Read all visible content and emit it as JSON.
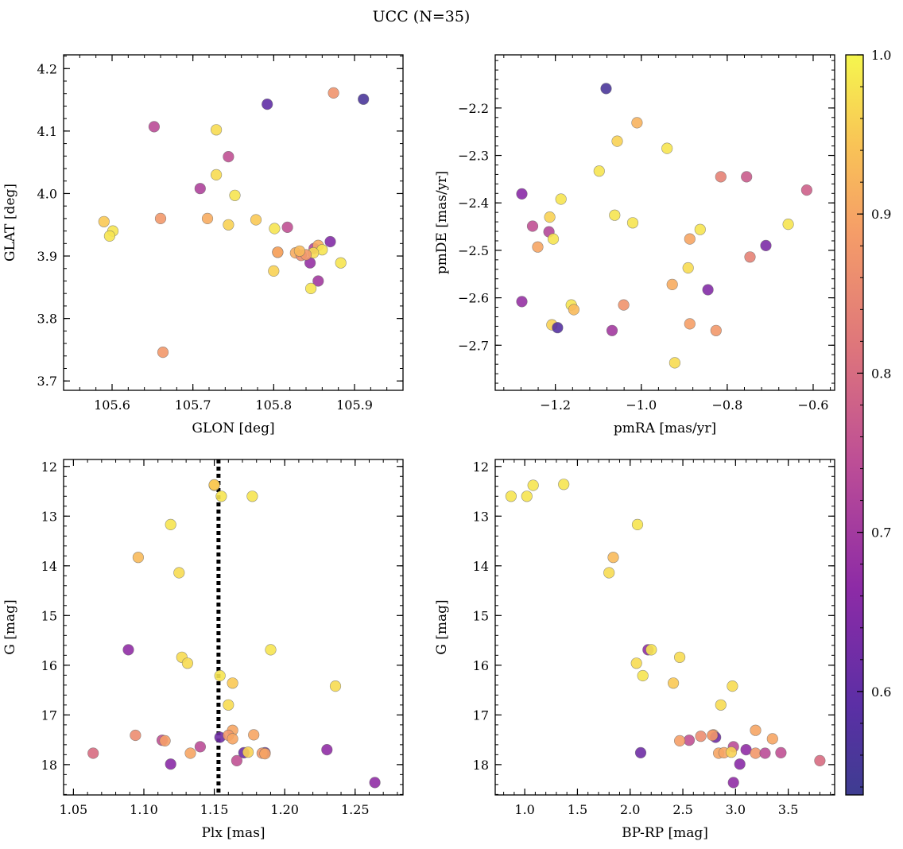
{
  "figure": {
    "title": "UCC (N=35)"
  },
  "colorbar": {
    "min": 0.535,
    "max": 1.0,
    "ticks": [
      0.6,
      0.7,
      0.8,
      0.9,
      1.0
    ],
    "tick_labels": [
      "0.6",
      "0.7",
      "0.8",
      "0.9",
      "1.0"
    ],
    "colormap": "plasma"
  },
  "chart_data": [
    {
      "type": "scatter",
      "xlabel": "GLON [deg]",
      "ylabel": "GLAT [deg]",
      "xlim": [
        105.54,
        105.96
      ],
      "ylim": [
        3.685,
        4.222
      ],
      "yinverted": false,
      "xticks": [
        105.6,
        105.7,
        105.8,
        105.9
      ],
      "xtick_labels": [
        "105.6",
        "105.7",
        "105.8",
        "105.9"
      ],
      "yticks": [
        3.7,
        3.8,
        3.9,
        4.0,
        4.1,
        4.2
      ],
      "ytick_labels": [
        "3.7",
        "3.8",
        "3.9",
        "4.0",
        "4.1",
        "4.2"
      ],
      "points": [
        {
          "x": 105.652,
          "y": 4.107,
          "c": 0.74
        },
        {
          "x": 105.729,
          "y": 4.102,
          "c": 0.97
        },
        {
          "x": 105.792,
          "y": 4.143,
          "c": 0.6
        },
        {
          "x": 105.874,
          "y": 4.161,
          "c": 0.87
        },
        {
          "x": 105.911,
          "y": 4.151,
          "c": 0.56
        },
        {
          "x": 105.744,
          "y": 4.059,
          "c": 0.75
        },
        {
          "x": 105.729,
          "y": 4.03,
          "c": 0.97
        },
        {
          "x": 105.709,
          "y": 4.008,
          "c": 0.72
        },
        {
          "x": 105.752,
          "y": 3.997,
          "c": 0.98
        },
        {
          "x": 105.59,
          "y": 3.955,
          "c": 0.95
        },
        {
          "x": 105.66,
          "y": 3.96,
          "c": 0.88
        },
        {
          "x": 105.718,
          "y": 3.96,
          "c": 0.91
        },
        {
          "x": 105.778,
          "y": 3.958,
          "c": 0.95
        },
        {
          "x": 105.601,
          "y": 3.94,
          "c": 0.98
        },
        {
          "x": 105.597,
          "y": 3.932,
          "c": 0.98
        },
        {
          "x": 105.744,
          "y": 3.95,
          "c": 0.96
        },
        {
          "x": 105.801,
          "y": 3.944,
          "c": 0.98
        },
        {
          "x": 105.817,
          "y": 3.946,
          "c": 0.75
        },
        {
          "x": 105.805,
          "y": 3.906,
          "c": 0.89
        },
        {
          "x": 105.827,
          "y": 3.905,
          "c": 0.91
        },
        {
          "x": 105.834,
          "y": 3.901,
          "c": 0.86
        },
        {
          "x": 105.85,
          "y": 3.912,
          "c": 0.73
        },
        {
          "x": 105.855,
          "y": 3.917,
          "c": 0.91
        },
        {
          "x": 105.86,
          "y": 3.91,
          "c": 0.98
        },
        {
          "x": 105.849,
          "y": 3.905,
          "c": 0.97
        },
        {
          "x": 105.87,
          "y": 3.923,
          "c": 0.65
        },
        {
          "x": 105.845,
          "y": 3.889,
          "c": 0.68
        },
        {
          "x": 105.855,
          "y": 3.86,
          "c": 0.7
        },
        {
          "x": 105.8,
          "y": 3.876,
          "c": 0.96
        },
        {
          "x": 105.846,
          "y": 3.848,
          "c": 0.98
        },
        {
          "x": 105.883,
          "y": 3.889,
          "c": 0.98
        },
        {
          "x": 105.663,
          "y": 3.746,
          "c": 0.88
        },
        {
          "x": 105.805,
          "y": 3.906,
          "c": 0.9
        },
        {
          "x": 105.84,
          "y": 3.902,
          "c": 0.88
        },
        {
          "x": 105.832,
          "y": 3.908,
          "c": 0.93
        }
      ]
    },
    {
      "type": "scatter",
      "xlabel": "pmRA [mas/yr]",
      "ylabel": "pmDE [mas/yr]",
      "xlim": [
        -1.34,
        -0.55
      ],
      "ylim": [
        -2.795,
        -2.088
      ],
      "yinverted": false,
      "xticks": [
        -1.2,
        -1.0,
        -0.8,
        -0.6
      ],
      "xtick_labels": [
        "−1.2",
        "−1.0",
        "−0.8",
        "−0.6"
      ],
      "yticks": [
        -2.7,
        -2.6,
        -2.5,
        -2.4,
        -2.3,
        -2.2
      ],
      "ytick_labels": [
        "−2.7",
        "−2.6",
        "−2.5",
        "−2.4",
        "−2.3",
        "−2.2"
      ],
      "points": [
        {
          "x": -1.082,
          "y": -2.159,
          "c": 0.56
        },
        {
          "x": -1.01,
          "y": -2.231,
          "c": 0.92
        },
        {
          "x": -1.056,
          "y": -2.27,
          "c": 0.96
        },
        {
          "x": -0.94,
          "y": -2.285,
          "c": 0.98
        },
        {
          "x": -1.098,
          "y": -2.333,
          "c": 0.98
        },
        {
          "x": -0.815,
          "y": -2.345,
          "c": 0.84
        },
        {
          "x": -0.755,
          "y": -2.345,
          "c": 0.77
        },
        {
          "x": -0.615,
          "y": -2.373,
          "c": 0.78
        },
        {
          "x": -1.278,
          "y": -2.381,
          "c": 0.66
        },
        {
          "x": -1.187,
          "y": -2.392,
          "c": 0.98
        },
        {
          "x": -1.213,
          "y": -2.43,
          "c": 0.96
        },
        {
          "x": -1.062,
          "y": -2.426,
          "c": 0.98
        },
        {
          "x": -1.02,
          "y": -2.442,
          "c": 0.98
        },
        {
          "x": -0.658,
          "y": -2.445,
          "c": 0.98
        },
        {
          "x": -1.253,
          "y": -2.449,
          "c": 0.75
        },
        {
          "x": -0.863,
          "y": -2.456,
          "c": 0.98
        },
        {
          "x": -1.215,
          "y": -2.461,
          "c": 0.73
        },
        {
          "x": -1.205,
          "y": -2.476,
          "c": 0.98
        },
        {
          "x": -0.887,
          "y": -2.476,
          "c": 0.9
        },
        {
          "x": -0.71,
          "y": -2.49,
          "c": 0.64
        },
        {
          "x": -1.241,
          "y": -2.493,
          "c": 0.9
        },
        {
          "x": -0.747,
          "y": -2.514,
          "c": 0.84
        },
        {
          "x": -0.891,
          "y": -2.537,
          "c": 0.97
        },
        {
          "x": -0.928,
          "y": -2.572,
          "c": 0.91
        },
        {
          "x": -0.845,
          "y": -2.583,
          "c": 0.65
        },
        {
          "x": -1.278,
          "y": -2.608,
          "c": 0.68
        },
        {
          "x": -1.163,
          "y": -2.615,
          "c": 0.98
        },
        {
          "x": -1.157,
          "y": -2.625,
          "c": 0.93
        },
        {
          "x": -1.041,
          "y": -2.615,
          "c": 0.87
        },
        {
          "x": -1.208,
          "y": -2.657,
          "c": 0.96
        },
        {
          "x": -1.195,
          "y": -2.663,
          "c": 0.58
        },
        {
          "x": -0.887,
          "y": -2.655,
          "c": 0.89
        },
        {
          "x": -1.068,
          "y": -2.669,
          "c": 0.7
        },
        {
          "x": -0.826,
          "y": -2.669,
          "c": 0.88
        },
        {
          "x": -0.922,
          "y": -2.737,
          "c": 0.97
        }
      ]
    },
    {
      "type": "scatter",
      "xlabel": "Plx [mas]",
      "ylabel": "G [mag]",
      "xlim": [
        1.043,
        1.284
      ],
      "ylim": [
        11.86,
        18.61
      ],
      "yinverted": true,
      "reference_line_x": 1.153,
      "xticks": [
        1.05,
        1.1,
        1.15,
        1.2,
        1.25
      ],
      "xtick_labels": [
        "1.05",
        "1.10",
        "1.15",
        "1.20",
        "1.25"
      ],
      "yticks": [
        12,
        13,
        14,
        15,
        16,
        17,
        18
      ],
      "ytick_labels": [
        "12",
        "13",
        "14",
        "15",
        "16",
        "17",
        "18"
      ],
      "points": [
        {
          "x": 1.15,
          "y": 12.38,
          "c": 0.96
        },
        {
          "x": 1.155,
          "y": 12.6,
          "c": 0.98
        },
        {
          "x": 1.177,
          "y": 12.6,
          "c": 0.98
        },
        {
          "x": 1.119,
          "y": 13.17,
          "c": 0.98
        },
        {
          "x": 1.096,
          "y": 13.83,
          "c": 0.93
        },
        {
          "x": 1.125,
          "y": 14.14,
          "c": 0.97
        },
        {
          "x": 1.089,
          "y": 15.69,
          "c": 0.67
        },
        {
          "x": 1.127,
          "y": 15.84,
          "c": 0.97
        },
        {
          "x": 1.131,
          "y": 15.96,
          "c": 0.97
        },
        {
          "x": 1.19,
          "y": 15.69,
          "c": 0.98
        },
        {
          "x": 1.154,
          "y": 16.21,
          "c": 0.98
        },
        {
          "x": 1.163,
          "y": 16.36,
          "c": 0.95
        },
        {
          "x": 1.236,
          "y": 16.42,
          "c": 0.97
        },
        {
          "x": 1.16,
          "y": 16.8,
          "c": 0.97
        },
        {
          "x": 1.094,
          "y": 17.41,
          "c": 0.86
        },
        {
          "x": 1.163,
          "y": 17.31,
          "c": 0.9
        },
        {
          "x": 1.178,
          "y": 17.4,
          "c": 0.9
        },
        {
          "x": 1.154,
          "y": 17.45,
          "c": 0.62
        },
        {
          "x": 1.16,
          "y": 17.41,
          "c": 0.88
        },
        {
          "x": 1.163,
          "y": 17.48,
          "c": 0.9
        },
        {
          "x": 1.113,
          "y": 17.51,
          "c": 0.75
        },
        {
          "x": 1.115,
          "y": 17.52,
          "c": 0.89
        },
        {
          "x": 1.14,
          "y": 17.64,
          "c": 0.74
        },
        {
          "x": 1.133,
          "y": 17.77,
          "c": 0.9
        },
        {
          "x": 1.064,
          "y": 17.77,
          "c": 0.8
        },
        {
          "x": 1.171,
          "y": 17.76,
          "c": 0.62
        },
        {
          "x": 1.174,
          "y": 17.75,
          "c": 0.96
        },
        {
          "x": 1.186,
          "y": 17.76,
          "c": 0.62
        },
        {
          "x": 1.184,
          "y": 17.77,
          "c": 0.88
        },
        {
          "x": 1.186,
          "y": 17.78,
          "c": 0.9
        },
        {
          "x": 1.23,
          "y": 17.7,
          "c": 0.67
        },
        {
          "x": 1.119,
          "y": 17.99,
          "c": 0.66
        },
        {
          "x": 1.166,
          "y": 17.92,
          "c": 0.75
        },
        {
          "x": 1.264,
          "y": 18.36,
          "c": 0.67
        },
        {
          "x": 1.15,
          "y": 12.37,
          "c": 0.95
        }
      ]
    },
    {
      "type": "scatter",
      "xlabel": "BP-RP [mag]",
      "ylabel": "G [mag]",
      "xlim": [
        0.72,
        3.94
      ],
      "ylim": [
        11.86,
        18.61
      ],
      "yinverted": true,
      "xticks": [
        1.0,
        1.5,
        2.0,
        2.5,
        3.0,
        3.5
      ],
      "xtick_labels": [
        "1.0",
        "1.5",
        "2.0",
        "2.5",
        "3.0",
        "3.5"
      ],
      "yticks": [
        12,
        13,
        14,
        15,
        16,
        17,
        18
      ],
      "ytick_labels": [
        "12",
        "13",
        "14",
        "15",
        "16",
        "17",
        "18"
      ],
      "points": [
        {
          "x": 0.87,
          "y": 12.6,
          "c": 0.98
        },
        {
          "x": 1.02,
          "y": 12.6,
          "c": 0.98
        },
        {
          "x": 1.08,
          "y": 12.38,
          "c": 0.98
        },
        {
          "x": 1.37,
          "y": 12.36,
          "c": 0.98
        },
        {
          "x": 2.07,
          "y": 13.17,
          "c": 0.98
        },
        {
          "x": 1.84,
          "y": 13.83,
          "c": 0.93
        },
        {
          "x": 1.8,
          "y": 14.14,
          "c": 0.97
        },
        {
          "x": 2.17,
          "y": 15.69,
          "c": 0.67
        },
        {
          "x": 2.2,
          "y": 15.69,
          "c": 0.98
        },
        {
          "x": 2.47,
          "y": 15.84,
          "c": 0.97
        },
        {
          "x": 2.06,
          "y": 15.96,
          "c": 0.97
        },
        {
          "x": 2.12,
          "y": 16.21,
          "c": 0.98
        },
        {
          "x": 2.41,
          "y": 16.36,
          "c": 0.95
        },
        {
          "x": 2.97,
          "y": 16.42,
          "c": 0.97
        },
        {
          "x": 2.86,
          "y": 16.8,
          "c": 0.97
        },
        {
          "x": 3.19,
          "y": 17.31,
          "c": 0.9
        },
        {
          "x": 2.67,
          "y": 17.43,
          "c": 0.86
        },
        {
          "x": 2.79,
          "y": 17.4,
          "c": 0.9
        },
        {
          "x": 2.81,
          "y": 17.45,
          "c": 0.62
        },
        {
          "x": 2.78,
          "y": 17.41,
          "c": 0.88
        },
        {
          "x": 3.35,
          "y": 17.48,
          "c": 0.9
        },
        {
          "x": 2.56,
          "y": 17.51,
          "c": 0.75
        },
        {
          "x": 2.47,
          "y": 17.52,
          "c": 0.89
        },
        {
          "x": 2.98,
          "y": 17.64,
          "c": 0.74
        },
        {
          "x": 3.1,
          "y": 17.7,
          "c": 0.67
        },
        {
          "x": 2.1,
          "y": 17.76,
          "c": 0.62
        },
        {
          "x": 2.84,
          "y": 17.77,
          "c": 0.9
        },
        {
          "x": 2.89,
          "y": 17.76,
          "c": 0.9
        },
        {
          "x": 2.96,
          "y": 17.75,
          "c": 0.96
        },
        {
          "x": 3.19,
          "y": 17.77,
          "c": 0.88
        },
        {
          "x": 3.28,
          "y": 17.77,
          "c": 0.74
        },
        {
          "x": 3.43,
          "y": 17.76,
          "c": 0.75
        },
        {
          "x": 3.04,
          "y": 17.99,
          "c": 0.66
        },
        {
          "x": 3.8,
          "y": 17.92,
          "c": 0.8
        },
        {
          "x": 2.98,
          "y": 18.36,
          "c": 0.67
        }
      ]
    }
  ]
}
